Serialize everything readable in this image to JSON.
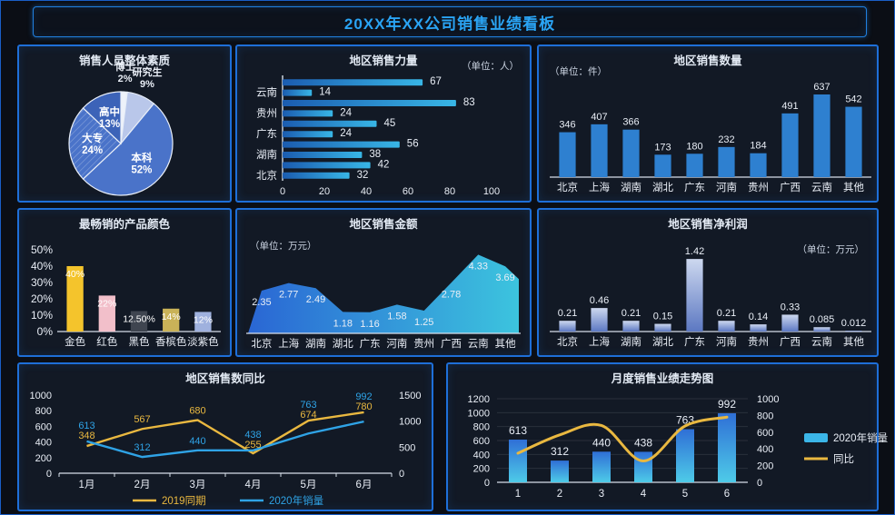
{
  "header": {
    "title": "20XX年XX公司销售业绩看板"
  },
  "colors": {
    "panel_border": "#1e6fd8",
    "main_title": "#2aa4f4",
    "yellow_series": "#e9b840",
    "blue_series": "#2fa3e6",
    "steel_bar": "#2e80d0"
  },
  "chart_data": [
    {
      "id": "staff-quality-pie",
      "type": "pie",
      "title": "销售人员整体素质",
      "slices": [
        {
          "name": "博士",
          "pct": 2,
          "label": "2%",
          "color": "#eef2fa",
          "outside": true
        },
        {
          "name": "研究生",
          "pct": 9,
          "label": "9%",
          "color": "#b9c7ea",
          "outside": true
        },
        {
          "name": "本科",
          "pct": 52,
          "label": "52%",
          "color": "#4a73c9"
        },
        {
          "name": "大专",
          "pct": 24,
          "label": "24%",
          "color": "#4a73c9",
          "hatch": true
        },
        {
          "name": "高中",
          "pct": 13,
          "label": "13%",
          "color": "#3c63b8"
        }
      ]
    },
    {
      "id": "region-sales-force",
      "type": "hbar",
      "title": "地区销售力量",
      "unit": "（单位：人）",
      "categories": [
        "",
        "云南",
        "",
        "贵州",
        "",
        "广东",
        "",
        "湖南",
        "",
        "北京"
      ],
      "values": [
        67,
        14,
        83,
        24,
        45,
        24,
        56,
        38,
        42,
        32
      ],
      "xticks": [
        0,
        20,
        40,
        60,
        80,
        100
      ],
      "xmax": 100,
      "bar_gradient": [
        "#1b5cb0",
        "#38b6e6"
      ]
    },
    {
      "id": "region-sales-qty",
      "type": "bar",
      "title": "地区销售数量",
      "unit": "（单位：件）",
      "categories": [
        "北京",
        "上海",
        "湖南",
        "湖北",
        "广东",
        "河南",
        "贵州",
        "广西",
        "云南",
        "其他"
      ],
      "values": [
        346,
        407,
        366,
        173,
        180,
        232,
        184,
        491,
        637,
        542
      ],
      "value_labels": [
        "346",
        "407",
        "366",
        "173",
        "180",
        "232",
        "184",
        "491",
        "637",
        "542"
      ],
      "ymax": 700,
      "bar_color": "#2e80d0"
    },
    {
      "id": "best-selling-product-color",
      "type": "bar",
      "title": "最畅销的产品颜色",
      "categories": [
        "金色",
        "红色",
        "黑色",
        "香槟色",
        "淡紫色"
      ],
      "values": [
        40,
        22,
        12.5,
        14,
        12
      ],
      "value_labels": [
        "40%",
        "22%",
        "12.50%",
        "14%",
        "12%"
      ],
      "bar_colors": [
        "#f4c42c",
        "#f2bfca",
        "#3f4550",
        "#c9b258",
        "#9fb1de"
      ],
      "yticks": [
        "0%",
        "10%",
        "20%",
        "30%",
        "40%",
        "50%"
      ],
      "ymax": 50,
      "labels_inside": true
    },
    {
      "id": "region-sales-amount",
      "type": "area",
      "title": "地区销售金额",
      "unit": "（单位：万元）",
      "categories": [
        "北京",
        "上海",
        "湖南",
        "湖北",
        "广东",
        "河南",
        "贵州",
        "广西",
        "云南",
        "其他"
      ],
      "values": [
        2.35,
        2.77,
        2.49,
        1.18,
        1.16,
        1.58,
        1.25,
        2.78,
        4.33,
        3.69
      ],
      "value_labels": [
        "2.35",
        "2.77",
        "2.49",
        "1.18",
        "1.16",
        "1.58",
        "1.25",
        "2.78",
        "4.33",
        "3.69"
      ],
      "ymax": 4.6,
      "area_gradient": [
        "#2a66d4",
        "#3cc4de"
      ]
    },
    {
      "id": "region-net-profit",
      "type": "bar",
      "title": "地区销售净利润",
      "unit": "（单位：万元）",
      "categories": [
        "北京",
        "上海",
        "湖南",
        "湖北",
        "广东",
        "河南",
        "贵州",
        "广西",
        "云南",
        "其他"
      ],
      "values": [
        0.21,
        0.46,
        0.21,
        0.15,
        1.42,
        0.21,
        0.14,
        0.33,
        0.085,
        0.012
      ],
      "value_labels": [
        "0.21",
        "0.46",
        "0.21",
        "0.15",
        "1.42",
        "0.21",
        "0.14",
        "0.33",
        "0.085",
        "0.012"
      ],
      "ymax": 1.6,
      "bar_gradient": [
        "#cdd8ef",
        "#5c78c2"
      ]
    },
    {
      "id": "region-sales-yoy",
      "type": "line",
      "title": "地区销售数同比",
      "categories": [
        "1月",
        "2月",
        "3月",
        "4月",
        "5月",
        "6月"
      ],
      "series": [
        {
          "name": "2019同期",
          "axis": "left",
          "color": "#e9b840",
          "values": [
            348,
            567,
            680,
            255,
            674,
            780
          ]
        },
        {
          "name": "2020年销量",
          "axis": "right",
          "color": "#2fa3e6",
          "values": [
            613,
            312,
            440,
            438,
            763,
            992
          ]
        }
      ],
      "left_ticks": [
        0,
        200,
        400,
        600,
        800,
        1000
      ],
      "left_max": 1000,
      "right_ticks": [
        0,
        500,
        1000,
        1500
      ],
      "right_max": 1500,
      "legend_position": "bottom"
    },
    {
      "id": "monthly-sales-trend",
      "type": "combo",
      "title": "月度销售业绩走势图",
      "categories": [
        "1",
        "2",
        "3",
        "4",
        "5",
        "6"
      ],
      "bar_series": {
        "name": "2020年销量",
        "values": [
          613,
          312,
          440,
          438,
          763,
          992
        ],
        "gradient": [
          "#2f6fd6",
          "#4ecbe8"
        ]
      },
      "line_series": {
        "name": "同比",
        "color": "#e9b840",
        "values": [
          348,
          567,
          680,
          255,
          674,
          780
        ]
      },
      "bar_value_labels": [
        "613",
        "312",
        "440",
        "438",
        "763",
        "992"
      ],
      "left_ticks": [
        0,
        200,
        400,
        600,
        800,
        1000,
        1200
      ],
      "left_max": 1200,
      "right_ticks": [
        0,
        200,
        400,
        600,
        800,
        1000
      ],
      "right_max": 1000,
      "grid": true,
      "legend_position": "right"
    }
  ]
}
